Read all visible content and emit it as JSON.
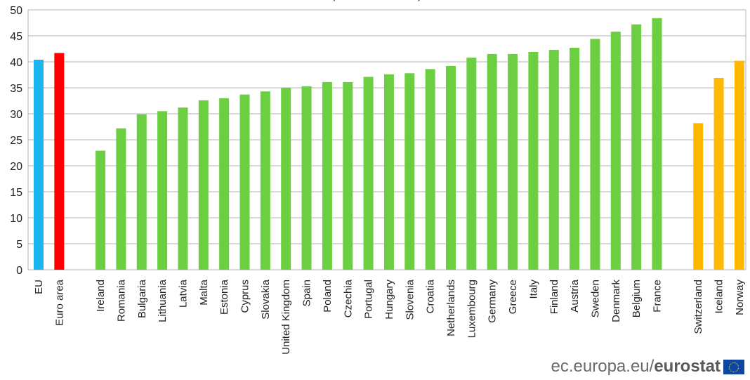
{
  "chart_data": {
    "type": "bar",
    "title_fragment": "(",
    "title_fragment_end": ")",
    "ylim": [
      0,
      50
    ],
    "yticks": [
      0,
      5,
      10,
      15,
      20,
      25,
      30,
      35,
      40,
      45,
      50
    ],
    "grid": true,
    "colors": {
      "aggregate_eu": "#1ab4ef",
      "aggregate_euro": "#ff0000",
      "member": "#6ccf42",
      "efta": "#ffb900"
    },
    "groups": [
      {
        "name": "aggregates",
        "categories": [
          "EU",
          "Euro area"
        ],
        "values": [
          40.4,
          41.7
        ],
        "colors": [
          "#1ab4ef",
          "#ff0000"
        ]
      },
      {
        "name": "members",
        "categories": [
          "Ireland",
          "Romania",
          "Bulgaria",
          "Lithuania",
          "Latvia",
          "Malta",
          "Estonia",
          "Cyprus",
          "Slovakia",
          "United Kingdom",
          "Spain",
          "Poland",
          "Czechia",
          "Portugal",
          "Hungary",
          "Slovenia",
          "Croatia",
          "Netherlands",
          "Luxembourg",
          "Germany",
          "Greece",
          "Italy",
          "Finland",
          "Austria",
          "Sweden",
          "Denmark",
          "Belgium",
          "France"
        ],
        "values": [
          22.9,
          27.2,
          29.9,
          30.5,
          31.2,
          32.6,
          33.0,
          33.7,
          34.3,
          35.0,
          35.3,
          36.1,
          36.1,
          37.1,
          37.6,
          37.8,
          38.6,
          39.2,
          40.8,
          41.5,
          41.5,
          41.9,
          42.3,
          42.7,
          44.4,
          45.8,
          47.2,
          48.4
        ],
        "colors": [
          "#6ccf42"
        ]
      },
      {
        "name": "efta",
        "categories": [
          "Switzerland",
          "Iceland",
          "Norway"
        ],
        "values": [
          28.2,
          36.9,
          40.2
        ],
        "colors": [
          "#ffb900"
        ]
      }
    ]
  },
  "source": {
    "domain": "ec.europa.eu/",
    "brand": "eurostat",
    "flag_icon": "eu-flag-icon"
  }
}
